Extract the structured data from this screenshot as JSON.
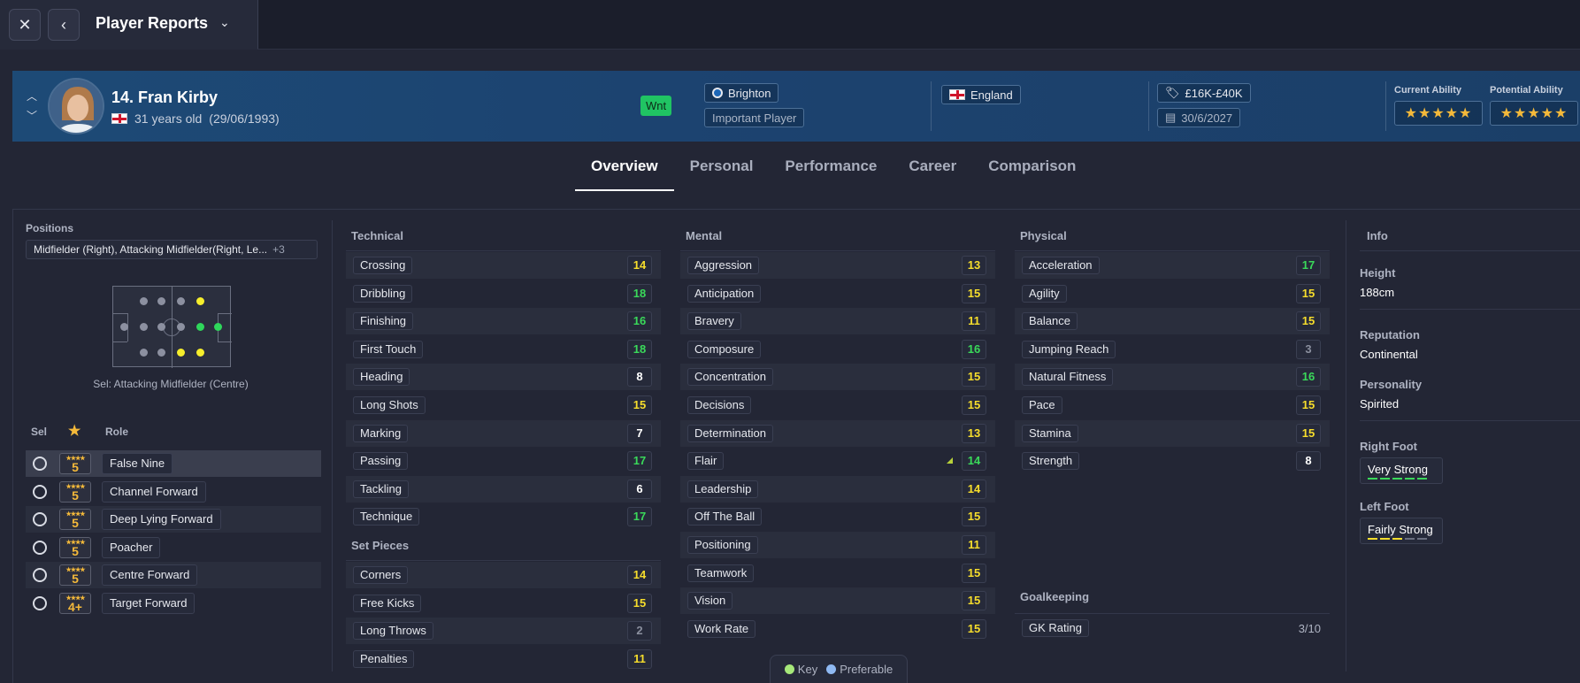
{
  "topbar": {
    "title": "Player Reports"
  },
  "player": {
    "name": "14. Fran Kirby",
    "age_text": "31 years old",
    "dob": "(29/06/1993)",
    "status_badge": "Wnt",
    "club": "Brighton",
    "squad_status": "Important Player",
    "nationality": "England",
    "wage": "£16K-£40K",
    "contract_end": "30/6/2027",
    "current_ability_label": "Current Ability",
    "potential_ability_label": "Potential Ability",
    "current_ability_stars": 5,
    "potential_ability_stars": 5
  },
  "tabs": [
    {
      "label": "Overview",
      "active": true
    },
    {
      "label": "Personal"
    },
    {
      "label": "Performance"
    },
    {
      "label": "Career"
    },
    {
      "label": "Comparison"
    }
  ],
  "positions": {
    "label": "Positions",
    "value": "Midfielder (Right), Attacking Midfielder(Right, Le...",
    "more": "+3",
    "selected_caption": "Sel: Attacking Midfielder (Centre)"
  },
  "roles": {
    "headers": {
      "sel": "Sel",
      "role": "Role"
    },
    "items": [
      {
        "rating": "5",
        "name": "False Nine"
      },
      {
        "rating": "5",
        "name": "Channel Forward"
      },
      {
        "rating": "5",
        "name": "Deep Lying Forward"
      },
      {
        "rating": "5",
        "name": "Poacher"
      },
      {
        "rating": "5",
        "name": "Centre Forward"
      },
      {
        "rating": "4+",
        "name": "Target Forward"
      }
    ]
  },
  "technical": {
    "title": "Technical",
    "items": [
      {
        "name": "Crossing",
        "value": "14",
        "tone": "yellow"
      },
      {
        "name": "Dribbling",
        "value": "18",
        "tone": "green"
      },
      {
        "name": "Finishing",
        "value": "16",
        "tone": "green"
      },
      {
        "name": "First Touch",
        "value": "18",
        "tone": "green"
      },
      {
        "name": "Heading",
        "value": "8",
        "tone": "white"
      },
      {
        "name": "Long Shots",
        "value": "15",
        "tone": "yellow"
      },
      {
        "name": "Marking",
        "value": "7",
        "tone": "white"
      },
      {
        "name": "Passing",
        "value": "17",
        "tone": "green"
      },
      {
        "name": "Tackling",
        "value": "6",
        "tone": "white"
      },
      {
        "name": "Technique",
        "value": "17",
        "tone": "green"
      }
    ]
  },
  "set_pieces": {
    "title": "Set Pieces",
    "items": [
      {
        "name": "Corners",
        "value": "14",
        "tone": "yellow"
      },
      {
        "name": "Free Kicks",
        "value": "15",
        "tone": "yellow"
      },
      {
        "name": "Long Throws",
        "value": "2",
        "tone": "gray"
      },
      {
        "name": "Penalties",
        "value": "11",
        "tone": "yellow"
      }
    ]
  },
  "mental": {
    "title": "Mental",
    "items": [
      {
        "name": "Aggression",
        "value": "13",
        "tone": "yellow"
      },
      {
        "name": "Anticipation",
        "value": "15",
        "tone": "yellow"
      },
      {
        "name": "Bravery",
        "value": "11",
        "tone": "yellow"
      },
      {
        "name": "Composure",
        "value": "16",
        "tone": "green"
      },
      {
        "name": "Concentration",
        "value": "15",
        "tone": "yellow"
      },
      {
        "name": "Decisions",
        "value": "15",
        "tone": "yellow"
      },
      {
        "name": "Determination",
        "value": "13",
        "tone": "yellow"
      },
      {
        "name": "Flair",
        "value": "14",
        "tone": "green"
      },
      {
        "name": "Leadership",
        "value": "14",
        "tone": "yellow"
      },
      {
        "name": "Off The Ball",
        "value": "15",
        "tone": "yellow"
      },
      {
        "name": "Positioning",
        "value": "11",
        "tone": "yellow"
      },
      {
        "name": "Teamwork",
        "value": "15",
        "tone": "yellow"
      },
      {
        "name": "Vision",
        "value": "15",
        "tone": "yellow"
      },
      {
        "name": "Work Rate",
        "value": "15",
        "tone": "yellow"
      }
    ]
  },
  "physical": {
    "title": "Physical",
    "items": [
      {
        "name": "Acceleration",
        "value": "17",
        "tone": "green"
      },
      {
        "name": "Agility",
        "value": "15",
        "tone": "yellow"
      },
      {
        "name": "Balance",
        "value": "15",
        "tone": "yellow"
      },
      {
        "name": "Jumping Reach",
        "value": "3",
        "tone": "gray"
      },
      {
        "name": "Natural Fitness",
        "value": "16",
        "tone": "green"
      },
      {
        "name": "Pace",
        "value": "15",
        "tone": "yellow"
      },
      {
        "name": "Stamina",
        "value": "15",
        "tone": "yellow"
      },
      {
        "name": "Strength",
        "value": "8",
        "tone": "white"
      }
    ]
  },
  "goalkeeping": {
    "title": "Goalkeeping",
    "rating_label": "GK Rating",
    "rating_value": "3/10"
  },
  "info": {
    "title": "Info",
    "height_label": "Height",
    "height": "188cm",
    "reputation_label": "Reputation",
    "reputation": "Continental",
    "personality_label": "Personality",
    "personality": "Spirited",
    "right_foot_label": "Right Foot",
    "right_foot": "Very Strong",
    "left_foot_label": "Left Foot",
    "left_foot": "Fairly Strong"
  },
  "legend": {
    "key": "Key",
    "preferable": "Preferable"
  },
  "colors": {
    "key": "#a6e87a",
    "preferable": "#8fb9f2",
    "green": "#3ad95a",
    "yellow": "#f6dd2c"
  }
}
